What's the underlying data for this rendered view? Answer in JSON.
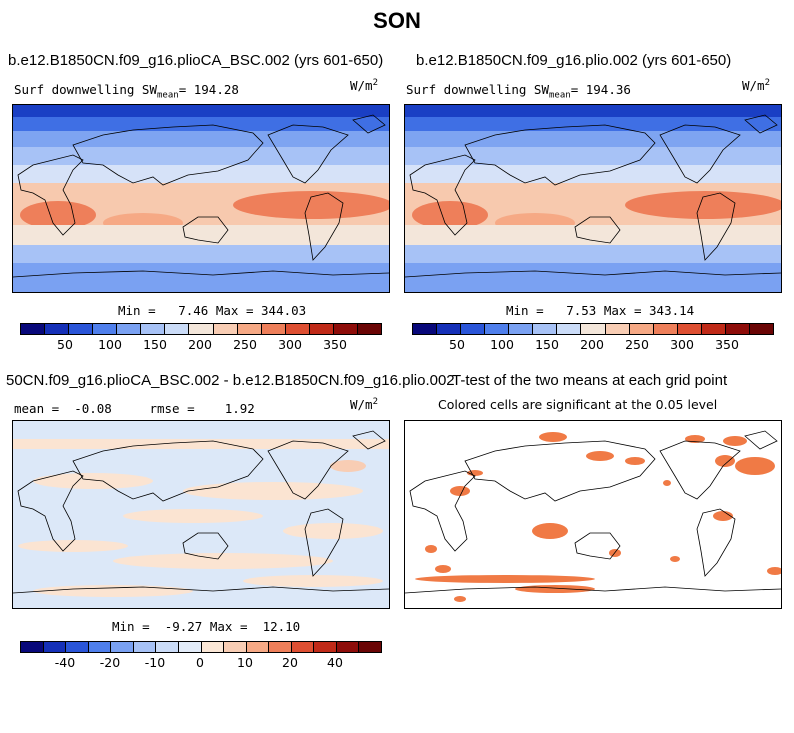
{
  "title": "SON",
  "panels": [
    {
      "title": "b.e12.B1850CN.f09_g16.plioCA_BSC.002 (yrs 601-650)",
      "var_prefix": "Surf downwelling SW",
      "mean_label": "mean",
      "mean_value": "= 194.28",
      "units_base": "W/m",
      "units_exp": "2",
      "min_label": "Min =",
      "min_value": "7.46",
      "max_label": "Max =",
      "max_value": "344.03"
    },
    {
      "title": "b.e12.B1850CN.f09_g16.plio.002 (yrs 601-650)",
      "var_prefix": "Surf downwelling SW",
      "mean_label": "mean",
      "mean_value": "= 194.36",
      "units_base": "W/m",
      "units_exp": "2",
      "min_label": "Min =",
      "min_value": "7.53",
      "max_label": "Max =",
      "max_value": "343.14"
    },
    {
      "title": "50CN.f09_g16.plioCA_BSC.002 - b.e12.B1850CN.f09_g16.plio.002",
      "stats": "mean =  -0.08     rmse =    1.92",
      "units_base": "W/m",
      "units_exp": "2",
      "min_label": "Min =",
      "min_value": "-9.27",
      "max_label": "Max =",
      "max_value": "12.10"
    },
    {
      "title": "T-test of the two means at each grid point",
      "subtitle": "Colored cells are significant at the 0.05 level"
    }
  ],
  "colorbar_abs": {
    "colors": [
      "#08087a",
      "#1530b8",
      "#2a55d8",
      "#4f7fec",
      "#7aa1f2",
      "#a7c2f6",
      "#cbdcf8",
      "#f3e6da",
      "#f8cdb4",
      "#f6a985",
      "#ee7f5a",
      "#de4f32",
      "#c02a18",
      "#8e0d0a",
      "#6a0505"
    ],
    "ticks": [
      "50",
      "100",
      "150",
      "200",
      "250",
      "300",
      "350"
    ]
  },
  "colorbar_diff": {
    "colors": [
      "#08087a",
      "#1530b8",
      "#2a55d8",
      "#4f7fec",
      "#7aa1f2",
      "#a7c2f6",
      "#cbdcf8",
      "#e3ecf9",
      "#fbe7d6",
      "#f8cdb4",
      "#f6a985",
      "#ee7f5a",
      "#de4f32",
      "#c02a18",
      "#8e0d0a",
      "#6a0505"
    ],
    "ticks": [
      "-40",
      "-20",
      "-10",
      "0",
      "10",
      "20",
      "40"
    ]
  },
  "colors": {
    "signif": "#f07a45",
    "diff_pos": "#fbe4d2",
    "diff_neg": "#dce8f8"
  }
}
